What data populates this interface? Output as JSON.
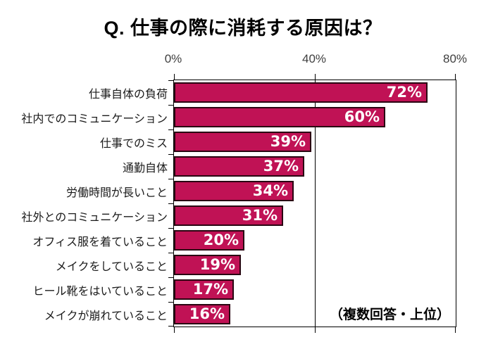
{
  "title": "Q. 仕事の際に消耗する原因は？",
  "annotation": "（複数回答・上位）",
  "colors": {
    "bar_fill": "#c01255",
    "bar_border": "#2a0512",
    "axis_line": "#000000",
    "tick_label": "#3f3f3f",
    "category_label": "#1a1a1a",
    "value_label": "#ffffff",
    "background": "#ffffff"
  },
  "chart_data": {
    "type": "bar",
    "orientation": "horizontal",
    "title": "Q. 仕事の際に消耗する原因は？",
    "categories": [
      "仕事自体の負荷",
      "社内でのコミュニケーション",
      "仕事でのミス",
      "通勤自体",
      "労働時間が長いこと",
      "社外とのコミュニケーション",
      "オフィス服を着ていること",
      "メイクをしていること",
      "ヒール靴をはいていること",
      "メイクが崩れていること"
    ],
    "values": [
      72,
      60,
      39,
      37,
      34,
      31,
      20,
      19,
      17,
      16
    ],
    "value_suffix": "%",
    "xlim": [
      0,
      80
    ],
    "x_ticks": [
      "0%",
      "40%",
      "80%"
    ],
    "x_tick_values": [
      0,
      40,
      80
    ],
    "gridline_at": 40,
    "grid": "vertical-only",
    "legend": "none",
    "note": "（複数回答・上位）"
  }
}
